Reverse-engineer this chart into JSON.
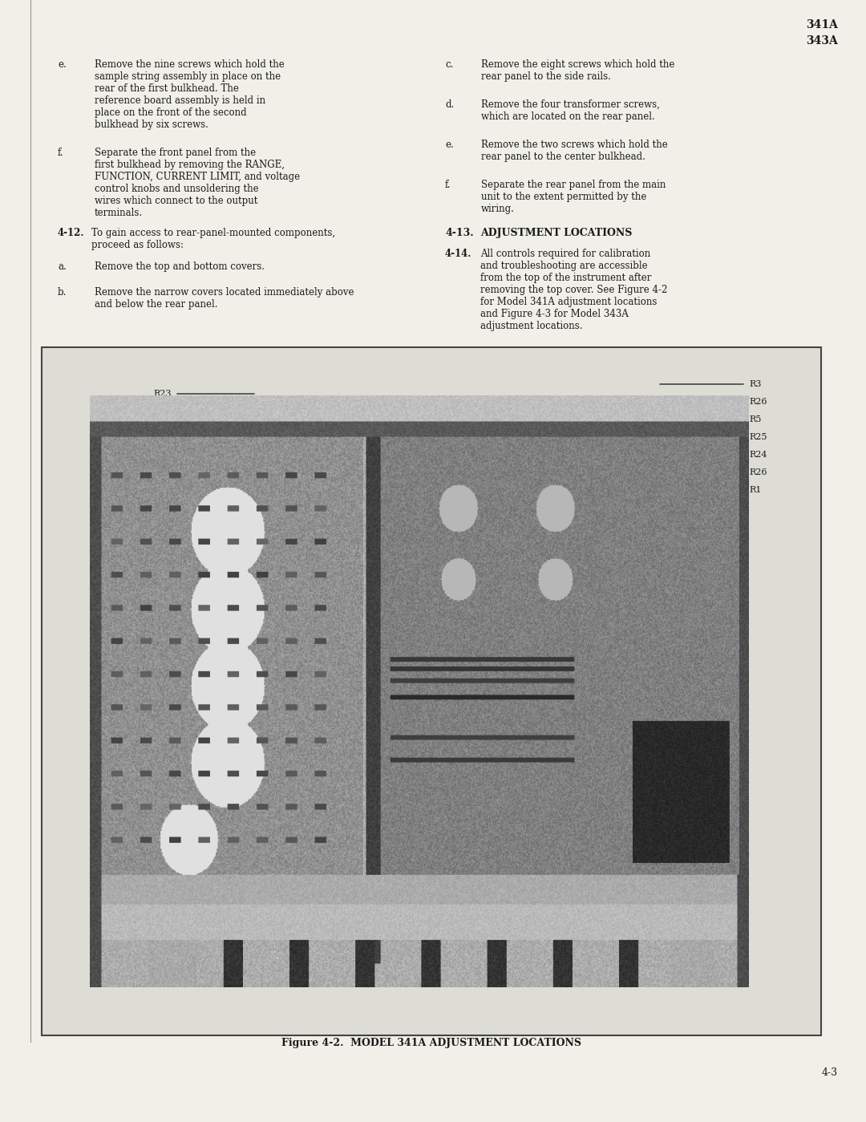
{
  "page_bg": "#f0efe8",
  "text_color": "#1a1a1a",
  "header_right": "341A\n343A",
  "left_col_items": [
    {
      "label": "e.",
      "text": "Remove the nine screws which hold the sample string assembly in place on the rear of the first bulkhead.  The reference board assembly is held in place on the front of the second bulkhead by six screws."
    },
    {
      "label": "f.",
      "text": "Separate the front panel from the first bulkhead by removing the RANGE,  FUNCTION,  CURRENT LIMIT, and voltage control knobs and unsoldering the wires which connect to the output terminals."
    }
  ],
  "right_col_items": [
    {
      "label": "c.",
      "text": "Remove the eight screws which hold the rear panel to the side rails."
    },
    {
      "label": "d.",
      "text": "Remove the four transformer screws, which are located on the rear panel."
    },
    {
      "label": "e.",
      "text": "Remove the two screws which hold the rear panel to the center bulkhead."
    },
    {
      "label": "f.",
      "text": "Separate the rear panel from the main unit to the extent permitted by the wiring."
    }
  ],
  "section_412_text": "To gain access to rear-panel-mounted components, proceed as follows:",
  "section_412_items": [
    {
      "label": "a.",
      "text": "Remove the top and bottom covers."
    },
    {
      "label": "b.",
      "text": "Remove the narrow covers located immediately above and below the rear panel."
    }
  ],
  "section_413_title": "ADJUSTMENT LOCATIONS",
  "section_414_text": "All controls required for calibration and troubleshooting are accessible from the top of the instrument after removing the top cover.  See Figure 4-2 for Model 341A adjustment locations and Figure 4-3 for Model 343A adjustment locations.",
  "figure_caption": "Figure 4-2.  MODEL 341A ADJUSTMENT LOCATIONS",
  "page_number": "4-3"
}
